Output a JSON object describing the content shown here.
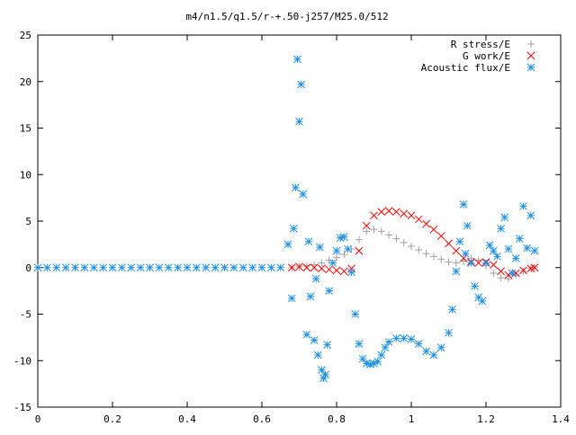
{
  "chart_data": {
    "type": "scatter",
    "title": "m4/n1.5/q1.5/r-+.50-j257/M25.0/512",
    "xlabel": "",
    "ylabel": "",
    "xlim": [
      0,
      1.4
    ],
    "ylim": [
      -15,
      25
    ],
    "x_ticks": [
      0,
      0.2,
      0.4,
      0.6,
      0.8,
      1,
      1.2,
      1.4
    ],
    "x_tick_labels": [
      "0",
      "0.2",
      "0.4",
      "0.6",
      "0.8",
      "1",
      "1.2",
      "1.4"
    ],
    "y_ticks": [
      -15,
      -10,
      -5,
      0,
      5,
      10,
      15,
      20,
      25
    ],
    "y_tick_labels": [
      "-15",
      "-10",
      "-5",
      "0",
      "5",
      "10",
      "15",
      "20",
      "25"
    ],
    "grid": false,
    "legend_position": "top-right",
    "series": [
      {
        "name": "R stress/E",
        "marker": "plus",
        "color": "#a0a0a0",
        "x": [
          0.68,
          0.7,
          0.72,
          0.74,
          0.76,
          0.78,
          0.8,
          0.82,
          0.84,
          0.86,
          0.88,
          0.9,
          0.92,
          0.94,
          0.96,
          0.98,
          1.0,
          1.02,
          1.04,
          1.06,
          1.08,
          1.1,
          1.12,
          1.14,
          1.16,
          1.18,
          1.2,
          1.22,
          1.24,
          1.26,
          1.28,
          1.3,
          1.32,
          1.33
        ],
        "y": [
          0,
          0.1,
          0.2,
          0.3,
          0.5,
          0.8,
          1.1,
          1.4,
          2.0,
          3.0,
          3.9,
          4.1,
          3.9,
          3.5,
          3.1,
          2.7,
          2.3,
          1.9,
          1.5,
          1.2,
          0.9,
          0.6,
          0.5,
          0.7,
          1.0,
          0.8,
          0.2,
          -0.6,
          -1.1,
          -1.2,
          -0.8,
          -0.4,
          -0.1,
          0
        ]
      },
      {
        "name": "G work/E",
        "marker": "cross",
        "color": "#ff0000",
        "x": [
          0.68,
          0.7,
          0.72,
          0.74,
          0.76,
          0.78,
          0.8,
          0.82,
          0.84,
          0.86,
          0.88,
          0.9,
          0.92,
          0.94,
          0.96,
          0.98,
          1.0,
          1.02,
          1.04,
          1.06,
          1.08,
          1.1,
          1.12,
          1.14,
          1.16,
          1.18,
          1.2,
          1.22,
          1.24,
          1.26,
          1.28,
          1.3,
          1.32,
          1.33
        ],
        "y": [
          0,
          0.1,
          0,
          0,
          -0.1,
          -0.2,
          -0.3,
          -0.4,
          -0.1,
          1.8,
          4.5,
          5.6,
          6.0,
          6.1,
          6.0,
          5.8,
          5.6,
          5.2,
          4.7,
          4.1,
          3.4,
          2.6,
          1.8,
          1.0,
          0.6,
          0.5,
          0.6,
          0.3,
          -0.4,
          -0.8,
          -0.6,
          -0.3,
          -0.1,
          0
        ]
      },
      {
        "name": "Acoustic flux/E",
        "marker": "star",
        "color": "#1e90e6",
        "x": [
          0,
          0.025,
          0.05,
          0.075,
          0.1,
          0.125,
          0.15,
          0.175,
          0.2,
          0.225,
          0.25,
          0.275,
          0.3,
          0.325,
          0.35,
          0.375,
          0.4,
          0.425,
          0.45,
          0.475,
          0.5,
          0.525,
          0.55,
          0.575,
          0.6,
          0.625,
          0.65,
          0.67,
          0.68,
          0.685,
          0.69,
          0.695,
          0.7,
          0.705,
          0.71,
          0.72,
          0.725,
          0.73,
          0.74,
          0.745,
          0.75,
          0.755,
          0.76,
          0.765,
          0.77,
          0.775,
          0.78,
          0.79,
          0.8,
          0.81,
          0.82,
          0.83,
          0.84,
          0.85,
          0.86,
          0.87,
          0.88,
          0.89,
          0.9,
          0.91,
          0.92,
          0.93,
          0.94,
          0.96,
          0.98,
          1.0,
          1.02,
          1.04,
          1.06,
          1.08,
          1.1,
          1.11,
          1.12,
          1.13,
          1.14,
          1.145,
          1.15,
          1.16,
          1.17,
          1.18,
          1.19,
          1.2,
          1.21,
          1.22,
          1.23,
          1.24,
          1.25,
          1.26,
          1.27,
          1.28,
          1.29,
          1.3,
          1.31,
          1.32,
          1.33
        ],
        "y": [
          0,
          0,
          0,
          0,
          0,
          0,
          0,
          0,
          0,
          0,
          0,
          0,
          0,
          0,
          0,
          0,
          0,
          0,
          0,
          0,
          0,
          0,
          0,
          0,
          0,
          0,
          0,
          2.5,
          -3.3,
          4.2,
          8.6,
          22.4,
          15.7,
          19.7,
          7.9,
          -7.2,
          2.8,
          -3.1,
          -7.8,
          -1.2,
          -9.4,
          2.2,
          -11.0,
          -11.9,
          -11.5,
          -8.3,
          -2.5,
          0.5,
          1.8,
          3.2,
          3.3,
          2.0,
          -0.5,
          -5.0,
          -8.2,
          -9.8,
          -10.3,
          -10.4,
          -10.3,
          -10.1,
          -9.4,
          -8.6,
          -8.0,
          -7.6,
          -7.6,
          -7.7,
          -8.2,
          -9.0,
          -9.4,
          -8.6,
          -7.0,
          -4.5,
          -0.4,
          2.8,
          6.8,
          1.5,
          4.5,
          0.5,
          -2.0,
          -3.2,
          -3.6,
          0.5,
          2.4,
          1.8,
          1.2,
          4.2,
          5.4,
          2.0,
          -0.6,
          1.0,
          3.1,
          6.6,
          2.1,
          5.6,
          1.8
        ]
      }
    ]
  }
}
